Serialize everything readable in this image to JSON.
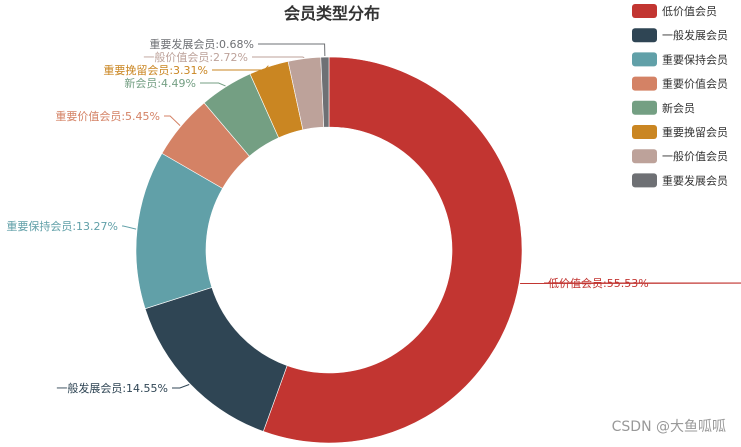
{
  "chart_data": {
    "type": "pie",
    "variant": "donut",
    "title": "会员类型分布",
    "legend_position": "right",
    "label_suffix": "%",
    "slices": [
      {
        "name": "低价值会员",
        "value": 55.53,
        "color": "#c23531"
      },
      {
        "name": "一般发展会员",
        "value": 14.55,
        "color": "#2f4554"
      },
      {
        "name": "重要保持会员",
        "value": 13.27,
        "color": "#61a0a8"
      },
      {
        "name": "重要价值会员",
        "value": 5.45,
        "color": "#d48265"
      },
      {
        "name": "新会员",
        "value": 4.49,
        "color": "#749f83"
      },
      {
        "name": "重要挽留会员",
        "value": 3.31,
        "color": "#ca8622"
      },
      {
        "name": "一般价值会员",
        "value": 2.72,
        "color": "#bda29a"
      },
      {
        "name": "重要发展会员",
        "value": 0.68,
        "color": "#6e7074"
      }
    ]
  },
  "watermark": "CSDN @大鱼呱呱"
}
